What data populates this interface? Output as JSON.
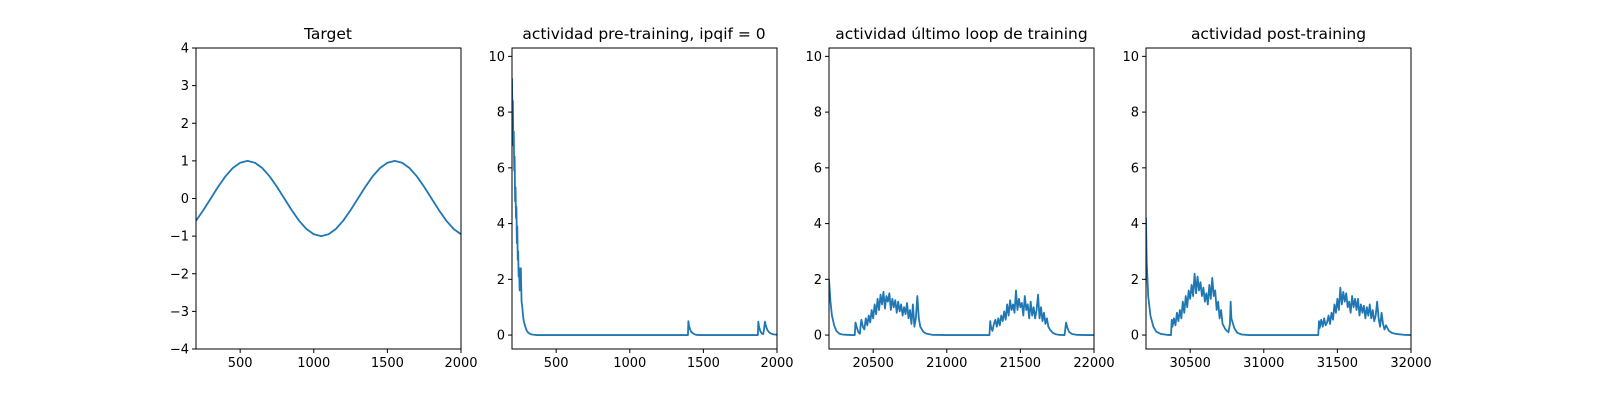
{
  "figure": {
    "background": "#ffffff",
    "line_color": "#1f77b4"
  },
  "chart_data": [
    {
      "type": "line",
      "title": "Target",
      "xlim": [
        200,
        2000
      ],
      "ylim": [
        -4,
        4
      ],
      "xticks": [
        500,
        1000,
        1500,
        2000
      ],
      "yticks": [
        -4,
        -3,
        -2,
        -1,
        0,
        1,
        2,
        3,
        4
      ],
      "xtick_labels": [
        "500",
        "1000",
        "1500",
        "2000"
      ],
      "ytick_labels": [
        "−4",
        "−3",
        "−2",
        "−1",
        "0",
        "1",
        "2",
        "3",
        "4"
      ],
      "series": [
        {
          "x": [
            200,
            250,
            300,
            350,
            400,
            450,
            500,
            550,
            600,
            650,
            700,
            750,
            800,
            850,
            900,
            950,
            1000,
            1050,
            1100,
            1150,
            1200,
            1250,
            1300,
            1350,
            1400,
            1450,
            1500,
            1550,
            1600,
            1650,
            1700,
            1750,
            1800,
            1850,
            1900,
            1950,
            2000
          ],
          "y": [
            -0.59,
            -0.31,
            0.0,
            0.31,
            0.59,
            0.81,
            0.95,
            1.0,
            0.95,
            0.81,
            0.59,
            0.31,
            0.0,
            -0.31,
            -0.59,
            -0.81,
            -0.95,
            -1.0,
            -0.95,
            -0.81,
            -0.59,
            -0.31,
            0.0,
            0.31,
            0.59,
            0.81,
            0.95,
            1.0,
            0.95,
            0.81,
            0.59,
            0.31,
            0.0,
            -0.31,
            -0.59,
            -0.81,
            -0.95
          ]
        }
      ]
    },
    {
      "type": "line",
      "title": "actividad pre-training, ipqif = 0",
      "xlim": [
        200,
        2000
      ],
      "ylim": [
        -0.5,
        10.3
      ],
      "xticks": [
        500,
        1000,
        1500,
        2000
      ],
      "yticks": [
        0,
        2,
        4,
        6,
        8,
        10
      ],
      "xtick_labels": [
        "500",
        "1000",
        "1500",
        "2000"
      ],
      "ytick_labels": [
        "0",
        "2",
        "4",
        "6",
        "8",
        "10"
      ],
      "series": [
        {
          "x": [
            200,
            203,
            206,
            209,
            212,
            215,
            218,
            221,
            224,
            227,
            230,
            233,
            236,
            239,
            242,
            245,
            248,
            252,
            256,
            260,
            265,
            270,
            275,
            280,
            290,
            300,
            310,
            320,
            335,
            350,
            370,
            400,
            600,
            900,
            1200,
            1395,
            1398,
            1402,
            1410,
            1420,
            1435,
            1450,
            1480,
            1600,
            1870,
            1873,
            1878,
            1886,
            1896,
            1906,
            1912,
            1918,
            1925,
            1935,
            1950,
            1970,
            2000
          ],
          "y": [
            9.2,
            7.9,
            8.4,
            6.8,
            7.3,
            5.9,
            6.4,
            4.8,
            5.3,
            4.2,
            4.6,
            3.3,
            3.9,
            2.7,
            3.0,
            2.1,
            2.4,
            1.6,
            1.9,
            2.4,
            1.2,
            1.0,
            0.7,
            0.5,
            0.3,
            0.16,
            0.09,
            0.05,
            0.02,
            0.01,
            0.0,
            0.0,
            0.0,
            0.0,
            0.0,
            0.0,
            0.5,
            0.35,
            0.2,
            0.1,
            0.04,
            0.01,
            0.0,
            0.0,
            0.0,
            0.48,
            0.3,
            0.15,
            0.06,
            0.03,
            0.2,
            0.48,
            0.32,
            0.18,
            0.08,
            0.03,
            0.01
          ]
        }
      ]
    },
    {
      "type": "line",
      "title": "actividad último loop de training",
      "xlim": [
        20200,
        22000
      ],
      "ylim": [
        -0.5,
        10.3
      ],
      "xticks": [
        20500,
        21000,
        21500,
        22000
      ],
      "yticks": [
        0,
        2,
        4,
        6,
        8,
        10
      ],
      "xtick_labels": [
        "20500",
        "21000",
        "21500",
        "22000"
      ],
      "ytick_labels": [
        "0",
        "2",
        "4",
        "6",
        "8",
        "10"
      ],
      "series": [
        {
          "x": [
            20200,
            20210,
            20220,
            20235,
            20250,
            20270,
            20290,
            20320,
            20360,
            20375,
            20380,
            20390,
            20400,
            20410,
            20415,
            20420,
            20430,
            20440,
            20450,
            20460,
            20470,
            20480,
            20490,
            20500,
            20510,
            20520,
            20530,
            20540,
            20550,
            20560,
            20570,
            20580,
            20590,
            20600,
            20610,
            20620,
            20630,
            20640,
            20650,
            20660,
            20670,
            20680,
            20690,
            20700,
            20710,
            20720,
            20730,
            20740,
            20750,
            20760,
            20770,
            20780,
            20790,
            20800,
            20810,
            20820,
            20840,
            20860,
            20900,
            21000,
            21100,
            21200,
            21290,
            21295,
            21300,
            21310,
            21320,
            21330,
            21340,
            21350,
            21360,
            21370,
            21380,
            21390,
            21400,
            21410,
            21420,
            21430,
            21440,
            21450,
            21460,
            21470,
            21480,
            21490,
            21500,
            21510,
            21520,
            21530,
            21540,
            21550,
            21560,
            21570,
            21580,
            21590,
            21600,
            21610,
            21620,
            21630,
            21640,
            21650,
            21660,
            21670,
            21680,
            21690,
            21700,
            21720,
            21740,
            21760,
            21800,
            21810,
            21820,
            21830,
            21850,
            21880,
            21950,
            22000
          ],
          "y": [
            2.0,
            1.2,
            0.7,
            0.35,
            0.15,
            0.05,
            0.02,
            0.01,
            0.0,
            0.0,
            0.45,
            0.25,
            0.1,
            0.05,
            0.35,
            0.55,
            0.3,
            0.2,
            0.6,
            0.35,
            0.7,
            0.45,
            0.9,
            0.6,
            1.1,
            0.75,
            1.3,
            0.9,
            1.45,
            1.1,
            1.55,
            0.95,
            1.4,
            1.2,
            1.5,
            0.9,
            1.3,
            1.0,
            1.25,
            0.8,
            1.2,
            0.85,
            1.1,
            0.7,
            1.0,
            0.75,
            1.15,
            0.6,
            0.9,
            0.4,
            1.1,
            0.3,
            0.6,
            1.4,
            0.6,
            0.3,
            0.12,
            0.05,
            0.01,
            0.0,
            0.0,
            0.0,
            0.0,
            0.5,
            0.3,
            0.15,
            0.4,
            0.55,
            0.3,
            0.6,
            0.35,
            0.7,
            0.5,
            0.85,
            0.55,
            1.1,
            0.7,
            1.25,
            0.9,
            1.1,
            0.8,
            1.6,
            0.9,
            1.3,
            1.0,
            1.15,
            0.7,
            1.4,
            0.9,
            1.1,
            0.6,
            1.2,
            0.7,
            1.0,
            0.6,
            0.9,
            1.45,
            0.6,
            1.0,
            0.5,
            0.8,
            0.4,
            0.6,
            0.3,
            0.2,
            0.08,
            0.03,
            0.01,
            0.0,
            0.45,
            0.25,
            0.12,
            0.04,
            0.01,
            0.0,
            0.0
          ]
        }
      ]
    },
    {
      "type": "line",
      "title": "actividad post-training",
      "xlim": [
        30200,
        32000
      ],
      "ylim": [
        -0.5,
        10.3
      ],
      "xticks": [
        30500,
        31000,
        31500,
        32000
      ],
      "yticks": [
        0,
        2,
        4,
        6,
        8,
        10
      ],
      "xtick_labels": [
        "30500",
        "31000",
        "31500",
        "32000"
      ],
      "ytick_labels": [
        "0",
        "2",
        "4",
        "6",
        "8",
        "10"
      ],
      "series": [
        {
          "x": [
            30200,
            30205,
            30215,
            30230,
            30250,
            30270,
            30300,
            30340,
            30370,
            30375,
            30380,
            30390,
            30400,
            30410,
            30420,
            30430,
            30440,
            30450,
            30460,
            30470,
            30480,
            30490,
            30500,
            30510,
            30520,
            30530,
            30540,
            30550,
            30560,
            30570,
            30580,
            30590,
            30600,
            30610,
            30620,
            30630,
            30640,
            30650,
            30660,
            30670,
            30680,
            30690,
            30700,
            30710,
            30720,
            30740,
            30760,
            30770,
            30775,
            30780,
            30800,
            30820,
            30850,
            30900,
            31000,
            31100,
            31200,
            31300,
            31370,
            31375,
            31380,
            31390,
            31400,
            31410,
            31420,
            31430,
            31440,
            31450,
            31460,
            31470,
            31480,
            31490,
            31500,
            31510,
            31520,
            31530,
            31540,
            31550,
            31560,
            31570,
            31580,
            31590,
            31600,
            31610,
            31620,
            31630,
            31640,
            31650,
            31660,
            31670,
            31680,
            31690,
            31700,
            31710,
            31720,
            31730,
            31740,
            31750,
            31760,
            31770,
            31780,
            31790,
            31800,
            31810,
            31820,
            31830,
            31850,
            31870,
            31900,
            31950,
            32000
          ],
          "y": [
            4.2,
            2.6,
            1.4,
            0.7,
            0.3,
            0.12,
            0.04,
            0.01,
            0.0,
            0.55,
            0.3,
            0.6,
            0.35,
            0.8,
            0.5,
            0.9,
            0.6,
            1.2,
            0.8,
            1.4,
            1.0,
            1.6,
            1.3,
            1.8,
            1.4,
            2.2,
            1.5,
            2.1,
            1.6,
            1.9,
            1.4,
            1.7,
            1.2,
            1.5,
            1.1,
            1.8,
            1.3,
            2.05,
            1.4,
            1.6,
            0.9,
            1.2,
            0.6,
            0.9,
            0.4,
            0.2,
            0.1,
            0.4,
            1.2,
            0.6,
            0.25,
            0.08,
            0.02,
            0.0,
            0.0,
            0.0,
            0.0,
            0.0,
            0.0,
            0.5,
            0.25,
            0.55,
            0.3,
            0.6,
            0.35,
            0.45,
            0.7,
            0.4,
            0.8,
            0.55,
            1.1,
            0.8,
            1.3,
            0.9,
            1.7,
            1.1,
            1.55,
            1.2,
            1.5,
            1.0,
            1.2,
            0.8,
            1.4,
            1.0,
            1.3,
            0.9,
            1.3,
            0.7,
            1.1,
            0.8,
            1.05,
            0.6,
            1.0,
            0.7,
            1.1,
            0.6,
            0.9,
            0.5,
            0.7,
            1.2,
            0.6,
            0.3,
            0.8,
            0.4,
            0.2,
            0.35,
            0.15,
            0.08,
            0.04,
            0.01,
            0.0
          ]
        }
      ]
    }
  ]
}
